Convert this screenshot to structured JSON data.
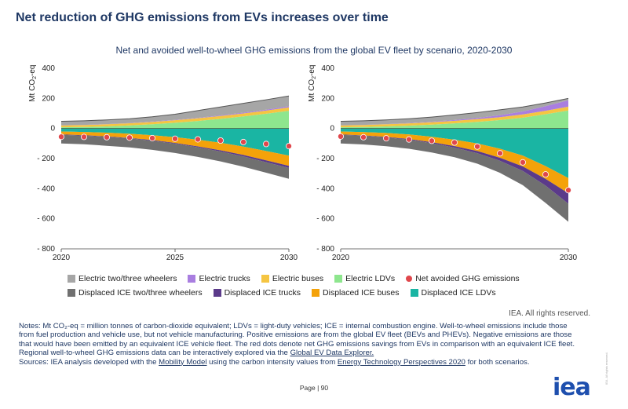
{
  "title": "Net reduction of GHG emissions from EVs increases over time",
  "subtitle": "Net and avoided well-to-wheel GHG emissions from the global EV fleet by scenario, 2020-2030",
  "colors": {
    "electric_2w3w": "#a6a6a6",
    "electric_trucks": "#a97ee0",
    "electric_buses": "#f5c542",
    "electric_ldvs": "#8ee68e",
    "net_avoided": "#e0474c",
    "displaced_2w3w": "#707070",
    "displaced_trucks": "#5b3a8a",
    "displaced_buses": "#f4a20a",
    "displaced_ldvs": "#1ab5a3"
  },
  "chart_data": [
    {
      "type": "area",
      "ylabel": "Mt CO2-eq",
      "ylim": [
        -800,
        400
      ],
      "yticks": [
        -800,
        -600,
        -400,
        -200,
        0,
        200,
        400
      ],
      "xlim": [
        2020,
        2030
      ],
      "xticks": [
        2020,
        2025,
        2030
      ],
      "x": [
        2020,
        2021,
        2022,
        2023,
        2024,
        2025,
        2026,
        2027,
        2028,
        2029,
        2030
      ],
      "positive_series": [
        {
          "name": "Electric LDVs",
          "key": "electric_ldvs",
          "values": [
            8,
            10,
            14,
            20,
            28,
            38,
            50,
            64,
            80,
            98,
            118
          ]
        },
        {
          "name": "Electric buses",
          "key": "electric_buses",
          "values": [
            12,
            13,
            14,
            15,
            16,
            17,
            18,
            19,
            20,
            21,
            22
          ]
        },
        {
          "name": "Electric trucks",
          "key": "electric_trucks",
          "values": [
            1,
            1,
            1,
            1,
            2,
            2,
            3,
            4,
            5,
            6,
            8
          ]
        },
        {
          "name": "Electric two/three wheelers",
          "key": "electric_2w3w",
          "values": [
            27,
            27,
            28,
            29,
            32,
            38,
            48,
            56,
            62,
            66,
            68
          ]
        }
      ],
      "negative_series": [
        {
          "name": "Displaced ICE LDVs",
          "key": "displaced_ldvs",
          "values": [
            -20,
            -23,
            -28,
            -35,
            -45,
            -58,
            -75,
            -95,
            -120,
            -150,
            -180
          ]
        },
        {
          "name": "Displaced ICE buses",
          "key": "displaced_buses",
          "values": [
            -20,
            -22,
            -25,
            -28,
            -32,
            -38,
            -44,
            -50,
            -56,
            -62,
            -68
          ]
        },
        {
          "name": "Displaced ICE trucks",
          "key": "displaced_trucks",
          "values": [
            -2,
            -2,
            -3,
            -3,
            -4,
            -5,
            -6,
            -8,
            -10,
            -12,
            -14
          ]
        },
        {
          "name": "Displaced ICE two/three wheelers",
          "key": "displaced_2w3w",
          "values": [
            -58,
            -58,
            -59,
            -60,
            -61,
            -62,
            -64,
            -66,
            -68,
            -70,
            -72
          ]
        }
      ],
      "net_avoided": {
        "name": "Net avoided GHG emissions",
        "key": "net_avoided",
        "values": [
          -55,
          -56,
          -58,
          -61,
          -64,
          -68,
          -72,
          -80,
          -90,
          -103,
          -117
        ]
      }
    },
    {
      "type": "area",
      "ylabel": "Mt CO2-eq",
      "ylim": [
        -800,
        400
      ],
      "yticks": [
        -800,
        -600,
        -400,
        -200,
        0,
        200,
        400
      ],
      "xlim": [
        2020,
        2030
      ],
      "xticks": [
        2020,
        2030
      ],
      "x": [
        2020,
        2021,
        2022,
        2023,
        2024,
        2025,
        2026,
        2027,
        2028,
        2029,
        2030
      ],
      "positive_series": [
        {
          "name": "Electric LDVs",
          "key": "electric_ldvs",
          "values": [
            8,
            10,
            14,
            19,
            26,
            34,
            44,
            56,
            72,
            95,
            120
          ]
        },
        {
          "name": "Electric buses",
          "key": "electric_buses",
          "values": [
            12,
            13,
            14,
            15,
            16,
            17,
            18,
            19,
            21,
            23,
            25
          ]
        },
        {
          "name": "Electric trucks",
          "key": "electric_trucks",
          "values": [
            1,
            1,
            1,
            2,
            3,
            5,
            8,
            13,
            20,
            30,
            42
          ]
        },
        {
          "name": "Electric two/three wheelers",
          "key": "electric_2w3w",
          "values": [
            27,
            27,
            28,
            29,
            31,
            34,
            36,
            36,
            30,
            22,
            13
          ]
        }
      ],
      "negative_series": [
        {
          "name": "Displaced ICE LDVs",
          "key": "displaced_ldvs",
          "values": [
            -20,
            -24,
            -30,
            -40,
            -55,
            -75,
            -100,
            -135,
            -180,
            -250,
            -330
          ]
        },
        {
          "name": "Displaced ICE buses",
          "key": "displaced_buses",
          "values": [
            -20,
            -22,
            -26,
            -30,
            -36,
            -42,
            -50,
            -60,
            -72,
            -85,
            -100
          ]
        },
        {
          "name": "Displaced ICE trucks",
          "key": "displaced_trucks",
          "values": [
            -2,
            -2,
            -3,
            -5,
            -7,
            -10,
            -14,
            -20,
            -30,
            -45,
            -70
          ]
        },
        {
          "name": "Displaced ICE two/three wheelers",
          "key": "displaced_2w3w",
          "values": [
            -58,
            -58,
            -59,
            -60,
            -62,
            -64,
            -70,
            -80,
            -95,
            -115,
            -120
          ]
        }
      ],
      "net_avoided": {
        "name": "Net avoided GHG emissions",
        "key": "net_avoided",
        "values": [
          -53,
          -58,
          -65,
          -73,
          -82,
          -93,
          -120,
          -165,
          -225,
          -305,
          -410
        ]
      }
    }
  ],
  "legend": {
    "row1": [
      {
        "label": "Electric two/three wheelers",
        "key": "electric_2w3w"
      },
      {
        "label": "Electric trucks",
        "key": "electric_trucks"
      },
      {
        "label": "Electric buses",
        "key": "electric_buses"
      },
      {
        "label": "Electric LDVs",
        "key": "electric_ldvs"
      },
      {
        "label": "Net avoided GHG emissions",
        "key": "net_avoided",
        "dot": true
      }
    ],
    "row2": [
      {
        "label": "Displaced ICE two/three wheelers",
        "key": "displaced_2w3w"
      },
      {
        "label": "Displaced ICE trucks",
        "key": "displaced_trucks"
      },
      {
        "label": "Displaced ICE buses",
        "key": "displaced_buses"
      },
      {
        "label": "Displaced ICE LDVs",
        "key": "displaced_ldvs"
      }
    ]
  },
  "rights": "IEA. All rights reserved.",
  "notes": {
    "p1": "Notes: Mt CO₂-eq = million tonnes of carbon-dioxide equivalent; LDVs = light-duty vehicles; ICE = internal combustion engine. Well-to-wheel emissions include those from fuel production and vehicle use, but not vehicle manufacturing. Positive emissions are from the global EV fleet (BEVs and PHEVs). Negative emissions are those that would have been emitted by an equivalent ICE vehicle fleet. The red dots denote net GHG emissions savings from EVs in comparison with an equivalent ICE fleet. Regional well-to-wheel GHG emissions data can be interactively explored via the",
    "link1": "Global EV Data Explorer.",
    "p2_pre": "Sources: IEA analysis developed with the",
    "link2": "Mobility Model",
    "p2_mid": "using the carbon intensity values from",
    "link3": "Energy Technology Perspectives 2020",
    "p2_post": "for both scenarios."
  },
  "page_label": "Page | 90",
  "logo_text": "iea",
  "vertical_text": "IEA. All rights reserved."
}
